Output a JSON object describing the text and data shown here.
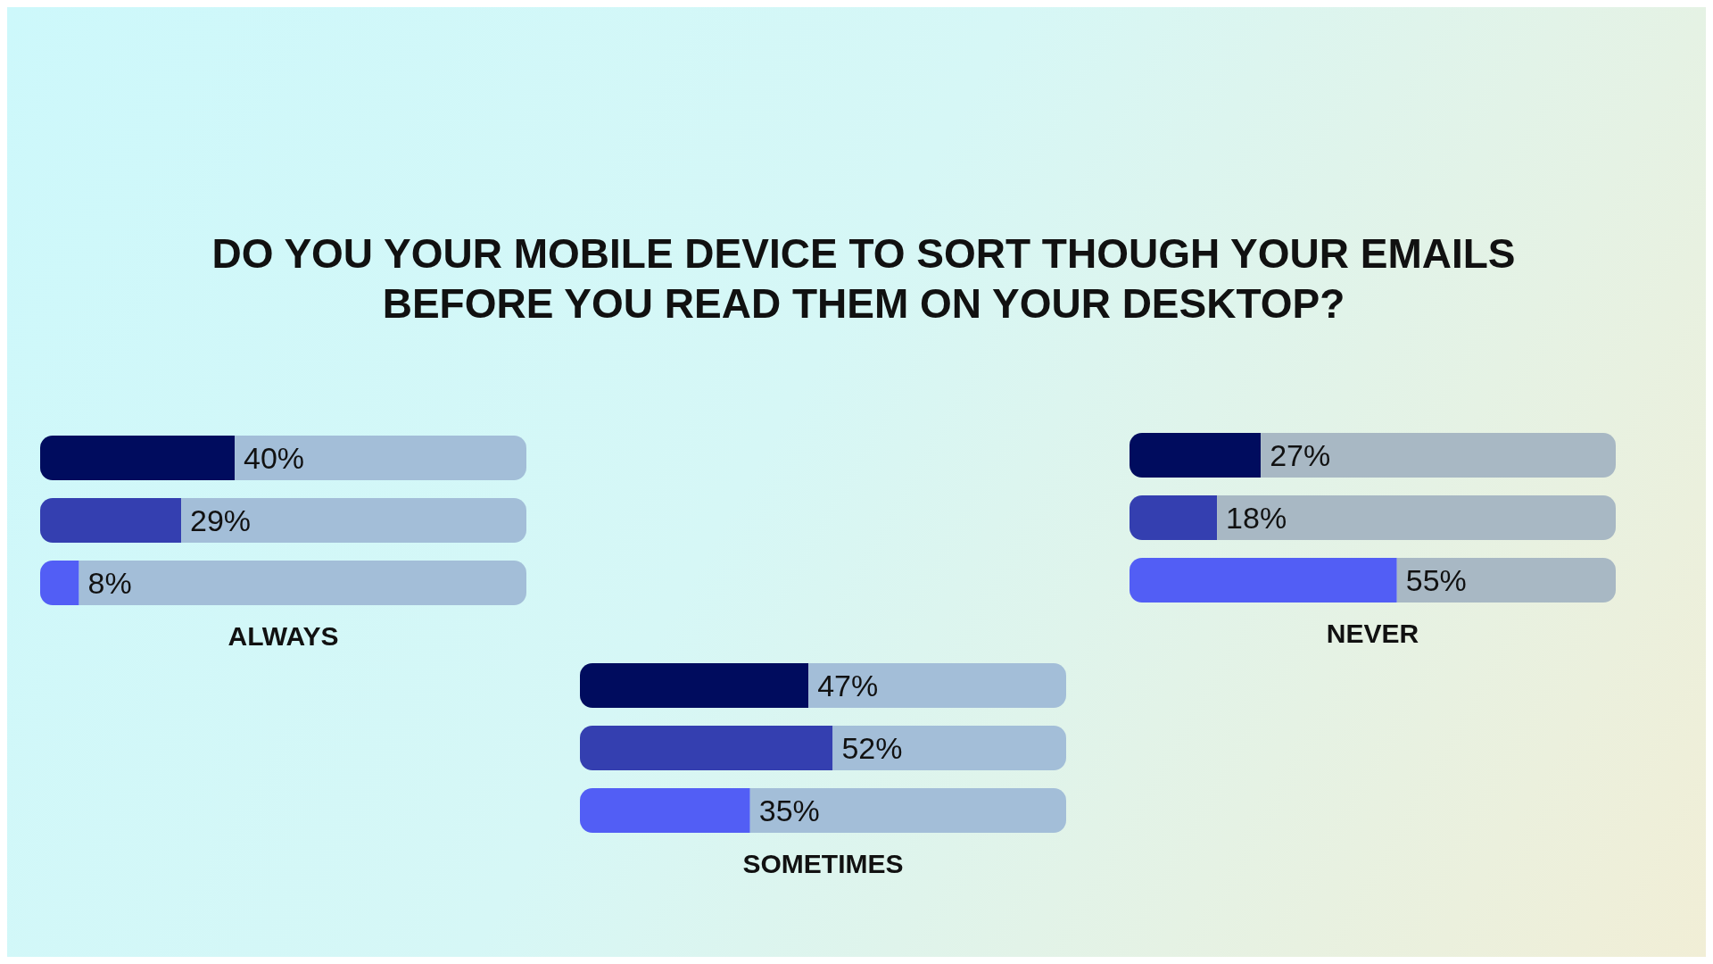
{
  "chart_data": [
    {
      "type": "bar",
      "orientation": "horizontal",
      "stacked": true,
      "title": "DO YOU YOUR MOBILE DEVICE TO SORT THOUGH YOUR EMAILS BEFORE YOU READ THEM ON YOUR DESKTOP?",
      "xlabel": "ALWAYS",
      "categories": [
        null,
        null,
        null
      ],
      "tick_labels": false,
      "series": [
        {
          "colors": [
            "#000c5e",
            "#343fb0",
            "#525ef5"
          ],
          "values": [
            40,
            29,
            8
          ],
          "value_labels": [
            "40%",
            "29%",
            "8%"
          ]
        },
        {
          "color": "#a3bed8",
          "values": [
            60,
            71,
            92
          ]
        }
      ]
    },
    {
      "type": "bar",
      "orientation": "horizontal",
      "stacked": true,
      "xlabel": "NEVER",
      "categories": [
        null,
        null,
        null
      ],
      "tick_labels": false,
      "series": [
        {
          "colors": [
            "#000c5e",
            "#343fb0",
            "#525ef5"
          ],
          "values": [
            27,
            18,
            55
          ],
          "value_labels": [
            "27%",
            "18%",
            "55%"
          ]
        },
        {
          "color": "#a8b8c4",
          "values": [
            73,
            82,
            45
          ]
        }
      ]
    },
    {
      "type": "bar",
      "orientation": "horizontal",
      "stacked": true,
      "xlabel": "SOMETIMES",
      "categories": [
        null,
        null,
        null
      ],
      "tick_labels": false,
      "series": [
        {
          "colors": [
            "#000c5e",
            "#343fb0",
            "#525ef5"
          ],
          "values": [
            47,
            52,
            35
          ],
          "value_labels": [
            "47%",
            "52%",
            "35%"
          ]
        },
        {
          "color": "#a3bed8",
          "values": [
            53,
            48,
            65
          ]
        }
      ]
    }
  ]
}
